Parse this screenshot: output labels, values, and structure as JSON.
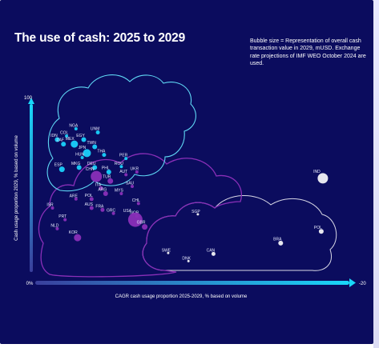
{
  "title": "The use of cash: 2025 to 2029",
  "note": "Bubble size = Representation of overall cash transaction value in 2029, mUSD. Exchange rate projections of IMF WEO October 2024 are used.",
  "chart_data": {
    "type": "scatter",
    "title": "The use of cash: 2025 to 2029",
    "xlabel": "CAGR cash usage proportion 2025-2029, % based on volume",
    "ylabel": "Cash usage proportion 2029, % based on volume",
    "x_tick_labels": [
      "0%",
      "-20"
    ],
    "y_tick_labels": [
      "100",
      "0%"
    ],
    "xlim": [
      0,
      -20
    ],
    "ylim": [
      0,
      100
    ],
    "colors": {
      "cluster1": "#19c6f3",
      "cluster2": "#8a2fb8",
      "cluster3": "#e6e6ee",
      "background": "#0b0c5e"
    },
    "points": [
      {
        "label": "NGA",
        "x": -2.4,
        "y": 84,
        "r": 2,
        "group": 1
      },
      {
        "label": "UNM",
        "x": -3.8,
        "y": 82,
        "r": 2.5,
        "group": 1
      },
      {
        "label": "COL",
        "x": -1.8,
        "y": 80,
        "r": 2,
        "group": 1
      },
      {
        "label": "IDN",
        "x": -1.2,
        "y": 78,
        "r": 3,
        "group": 1
      },
      {
        "label": "EGY",
        "x": -2.9,
        "y": 78,
        "r": 3,
        "group": 1
      },
      {
        "label": "ZAF",
        "x": -1.6,
        "y": 75.5,
        "r": 3,
        "group": 1
      },
      {
        "label": "MEX",
        "x": -2.3,
        "y": 75.5,
        "r": 4.5,
        "group": 1
      },
      {
        "label": "TWN",
        "x": -3.6,
        "y": 74,
        "r": 3,
        "group": 1
      },
      {
        "label": "JPN",
        "x": -3.1,
        "y": 70.5,
        "r": 5,
        "group": 1
      },
      {
        "label": "THA",
        "x": -4.2,
        "y": 69.5,
        "r": 2.5,
        "group": 1
      },
      {
        "label": "HUN",
        "x": -2.8,
        "y": 68,
        "r": 2,
        "group": 1
      },
      {
        "label": "PER",
        "x": -5.6,
        "y": 67.5,
        "r": 2,
        "group": 1
      },
      {
        "label": "ESP",
        "x": -1.5,
        "y": 61.5,
        "r": 3.5,
        "group": 1
      },
      {
        "label": "MKG",
        "x": -2.6,
        "y": 62.5,
        "r": 3,
        "group": 1
      },
      {
        "label": "DEU",
        "x": -3.6,
        "y": 62.5,
        "r": 3,
        "group": 1
      },
      {
        "label": "ROU",
        "x": -5.3,
        "y": 63,
        "r": 2,
        "group": 1
      },
      {
        "label": "PHL",
        "x": -4.5,
        "y": 60,
        "r": 3,
        "group": 1
      },
      {
        "label": "UKR",
        "x": -6.3,
        "y": 60,
        "r": 2,
        "group": 2
      },
      {
        "label": "CHN",
        "x": -3.7,
        "y": 57.5,
        "r": 7,
        "group": 2
      },
      {
        "label": "AUT",
        "x": -5.6,
        "y": 58.5,
        "r": 2,
        "group": 2
      },
      {
        "label": "TUR",
        "x": -4.6,
        "y": 55,
        "r": 3.5,
        "group": 2
      },
      {
        "label": "ITA",
        "x": -4,
        "y": 51,
        "r": 2.5,
        "group": 2
      },
      {
        "label": "SAU",
        "x": -6,
        "y": 52,
        "r": 2,
        "group": 2
      },
      {
        "label": "ARG",
        "x": -4.3,
        "y": 48,
        "r": 3,
        "group": 2
      },
      {
        "label": "MYS",
        "x": -5.3,
        "y": 48,
        "r": 2,
        "group": 2
      },
      {
        "label": "ARE",
        "x": -2.4,
        "y": 45,
        "r": 2,
        "group": 2
      },
      {
        "label": "POL",
        "x": -3.4,
        "y": 45,
        "r": 2.5,
        "group": 2
      },
      {
        "label": "CHL",
        "x": -6.4,
        "y": 42.5,
        "r": 2,
        "group": 2
      },
      {
        "label": "ISR",
        "x": -0.9,
        "y": 40,
        "r": 2,
        "group": 2
      },
      {
        "label": "AUS",
        "x": -3.4,
        "y": 40,
        "r": 2.5,
        "group": 2
      },
      {
        "label": "FRA",
        "x": -4.1,
        "y": 39,
        "r": 2.5,
        "group": 2
      },
      {
        "label": "GRC",
        "x": -4.8,
        "y": 37,
        "r": 2,
        "group": 2
      },
      {
        "label": "NOR",
        "x": -6.3,
        "y": 35.5,
        "r": 2,
        "group": 2
      },
      {
        "label": "PRT",
        "x": -1.7,
        "y": 33.5,
        "r": 2,
        "group": 2
      },
      {
        "label": "USA",
        "x": -6.2,
        "y": 33.5,
        "r": 9,
        "group": 2
      },
      {
        "label": "NLD",
        "x": -1.2,
        "y": 28.5,
        "r": 2,
        "group": 2
      },
      {
        "label": "GBR",
        "x": -6.8,
        "y": 29.5,
        "r": 3.5,
        "group": 2
      },
      {
        "label": "KOR",
        "x": -2.5,
        "y": 23.5,
        "r": 4.5,
        "group": 2
      },
      {
        "label": "SGP",
        "x": -10.2,
        "y": 36.5,
        "r": 1.5,
        "group": 3
      },
      {
        "label": "IND",
        "x": -18.2,
        "y": 56.5,
        "r": 6.5,
        "group": 3
      },
      {
        "label": "BRA",
        "x": -15.5,
        "y": 20.5,
        "r": 3,
        "group": 3
      },
      {
        "label": "POL",
        "x": -18.1,
        "y": 27,
        "r": 3,
        "group": 3
      },
      {
        "label": "CAN",
        "x": -11.2,
        "y": 14.5,
        "r": 2.5,
        "group": 3
      },
      {
        "label": "SWE",
        "x": -8.3,
        "y": 15,
        "r": 1.5,
        "group": 3
      },
      {
        "label": "DNK",
        "x": -9.6,
        "y": 10.5,
        "r": 1.5,
        "group": 3
      }
    ]
  }
}
